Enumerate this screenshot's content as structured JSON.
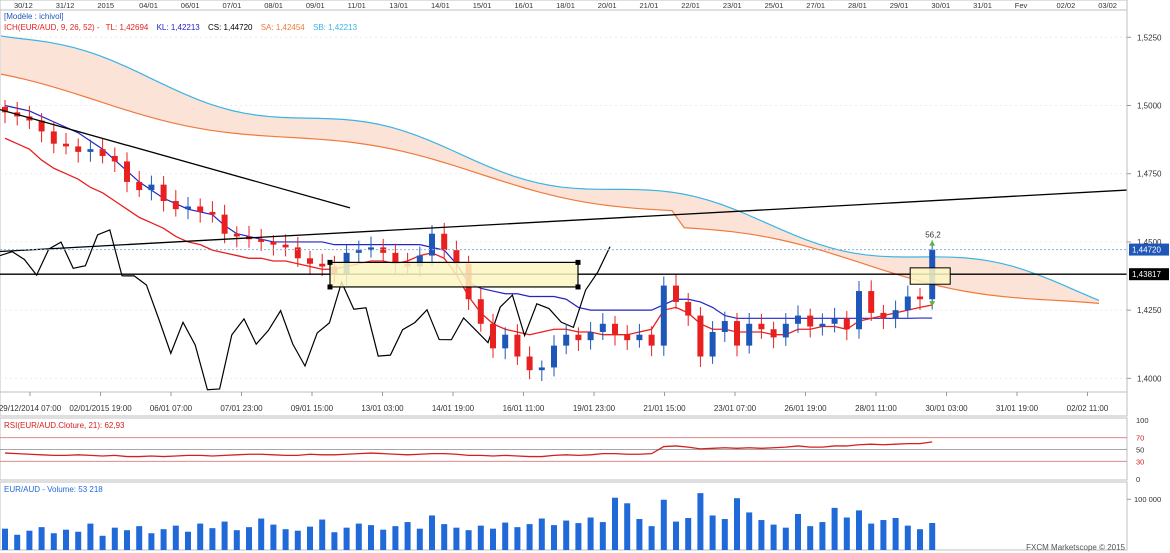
{
  "top_axis": {
    "labels": [
      "30/12",
      "31/12",
      "2015",
      "04/01",
      "06/01",
      "07/01",
      "08/01",
      "09/01",
      "11/01",
      "13/01",
      "14/01",
      "15/01",
      "16/01",
      "18/01",
      "20/01",
      "21/01",
      "22/01",
      "23/01",
      "25/01",
      "27/01",
      "28/01",
      "29/01",
      "30/01",
      "31/01",
      "Fev",
      "02/02",
      "03/02"
    ]
  },
  "header": {
    "model": "[Modèle : ichivol]",
    "ich_label": "ICH(EUR/AUD, 9, 26, 52) -",
    "tl": "TL: 1,42694",
    "kl": "KL: 1,42213",
    "cs": "CS: 1,44720",
    "sa": "SA: 1,42454",
    "sb": "SB: 1,42213"
  },
  "colors": {
    "tenkan": "#e8201f",
    "kijun": "#2323c8",
    "chikou": "#000000",
    "senkou_a": "#f07a3c",
    "senkou_b": "#3ab4e6",
    "cloud": "#fbe3d8",
    "cloud_low": "#d6eefa",
    "bull": "#1f57b8",
    "bear": "#e8201f",
    "rsi": "#d42020",
    "volume": "#1f69d8",
    "price_tag": "#1f57b8"
  },
  "chart_data": [
    {
      "type": "candlestick",
      "title": "EUR/AUD",
      "ylim": [
        1.395,
        1.535
      ],
      "y_ticks": [
        "1,5250",
        "1,5000",
        "1,4750",
        "1,4500",
        "1,4250",
        "1,4000"
      ],
      "y_tick_values": [
        1.525,
        1.5,
        1.475,
        1.45,
        1.425,
        1.4
      ],
      "x_labels": [
        "29/12/2014 07:00",
        "02/01/2015 19:00",
        "06/01 07:00",
        "07/01 23:00",
        "09/01 15:00",
        "13/01 03:00",
        "14/01 19:00",
        "16/01 11:00",
        "19/01 23:00",
        "21/01 15:00",
        "23/01 07:00",
        "26/01 19:00",
        "28/01 11:00",
        "30/01 03:00",
        "31/01 19:00",
        "02/02 11:00"
      ],
      "last_price": "1,44720",
      "last_price_value": 1.4472,
      "horizontal_level": "1,43817",
      "horizontal_level_value": 1.43817,
      "annotation": "56,2",
      "close": [
        1.4975,
        1.496,
        1.4945,
        1.4905,
        1.486,
        1.485,
        1.483,
        1.484,
        1.4815,
        1.4795,
        1.472,
        1.469,
        1.471,
        1.465,
        1.462,
        1.463,
        1.461,
        1.46,
        1.453,
        1.452,
        1.451,
        1.45,
        1.449,
        1.448,
        1.444,
        1.442,
        1.441,
        1.438,
        1.446,
        1.447,
        1.448,
        1.446,
        1.442,
        1.441,
        1.445,
        1.453,
        1.447,
        1.442,
        1.429,
        1.42,
        1.411,
        1.416,
        1.408,
        1.403,
        1.404,
        1.412,
        1.416,
        1.414,
        1.417,
        1.42,
        1.416,
        1.414,
        1.416,
        1.412,
        1.434,
        1.428,
        1.423,
        1.408,
        1.417,
        1.421,
        1.412,
        1.42,
        1.418,
        1.415,
        1.42,
        1.423,
        1.419,
        1.42,
        1.422,
        1.418,
        1.432,
        1.424,
        1.422,
        1.425,
        1.43,
        1.429,
        1.4472
      ],
      "tenkan": [
        1.488,
        1.486,
        1.484,
        1.48,
        1.477,
        1.475,
        1.473,
        1.47,
        1.468,
        1.465,
        1.462,
        1.459,
        1.457,
        1.455,
        1.452,
        1.45,
        1.449,
        1.447,
        1.446,
        1.445,
        1.444,
        1.444,
        1.443,
        1.443,
        1.442,
        1.441,
        1.44,
        1.44,
        1.441,
        1.442,
        1.443,
        1.443,
        1.442,
        1.443,
        1.445,
        1.446,
        1.444,
        1.438,
        1.43,
        1.424,
        1.42,
        1.418,
        1.417,
        1.416,
        1.417,
        1.418,
        1.418,
        1.417,
        1.417,
        1.416,
        1.416,
        1.416,
        1.417,
        1.418,
        1.425,
        1.426,
        1.424,
        1.42,
        1.418,
        1.418,
        1.417,
        1.417,
        1.417,
        1.416,
        1.416,
        1.418,
        1.418,
        1.419,
        1.419,
        1.418,
        1.421,
        1.422,
        1.423,
        1.424,
        1.425,
        1.426,
        1.4269
      ],
      "kijun": [
        1.5,
        1.499,
        1.498,
        1.496,
        1.494,
        1.492,
        1.49,
        1.487,
        1.484,
        1.48,
        1.476,
        1.472,
        1.469,
        1.466,
        1.464,
        1.462,
        1.461,
        1.46,
        1.456,
        1.453,
        1.452,
        1.451,
        1.45,
        1.45,
        1.45,
        1.45,
        1.45,
        1.449,
        1.449,
        1.449,
        1.449,
        1.449,
        1.449,
        1.449,
        1.449,
        1.448,
        1.447,
        1.442,
        1.435,
        1.433,
        1.432,
        1.431,
        1.431,
        1.43,
        1.43,
        1.43,
        1.429,
        1.426,
        1.425,
        1.425,
        1.425,
        1.425,
        1.425,
        1.425,
        1.427,
        1.429,
        1.429,
        1.428,
        1.426,
        1.423,
        1.422,
        1.422,
        1.422,
        1.422,
        1.422,
        1.422,
        1.422,
        1.422,
        1.422,
        1.422,
        1.422,
        1.422,
        1.422,
        1.422,
        1.422,
        1.4221,
        1.4221
      ]
    },
    {
      "type": "line",
      "title": "RSI(EUR/AUD.Cloture, 21): 62,93",
      "ylim": [
        0,
        100
      ],
      "y_ticks": [
        "100",
        "70",
        "50",
        "30",
        "0"
      ],
      "levels": [
        70,
        50,
        30
      ],
      "values": [
        44,
        43,
        42,
        41,
        40,
        40,
        41,
        40,
        39,
        40,
        38,
        38,
        39,
        38,
        39,
        40,
        40,
        39,
        40,
        41,
        42,
        42,
        41,
        40,
        40,
        42,
        41,
        41,
        42,
        43,
        44,
        43,
        42,
        41,
        42,
        43,
        43,
        42,
        40,
        40,
        39,
        40,
        39,
        38,
        38,
        40,
        41,
        40,
        41,
        43,
        43,
        42,
        42,
        43,
        55,
        56,
        54,
        51,
        52,
        53,
        52,
        53,
        52,
        53,
        54,
        56,
        54,
        54,
        56,
        56,
        58,
        59,
        58,
        59,
        60,
        60,
        62.93
      ]
    },
    {
      "type": "bar",
      "title": "EUR/AUD - Volume: 53 218",
      "ylim": [
        0,
        130000
      ],
      "y_ticks": [
        "100 000"
      ],
      "values": [
        42000,
        30000,
        38000,
        45000,
        33000,
        40000,
        36000,
        52000,
        28000,
        44000,
        39000,
        47000,
        33000,
        41000,
        48000,
        36000,
        52000,
        43000,
        56000,
        39000,
        45000,
        62000,
        50000,
        41000,
        38000,
        46000,
        60000,
        35000,
        44000,
        52000,
        49000,
        40000,
        47000,
        55000,
        42000,
        68000,
        51000,
        44000,
        39000,
        48000,
        42000,
        54000,
        45000,
        51000,
        62000,
        49000,
        58000,
        53000,
        64000,
        55000,
        103000,
        92000,
        61000,
        47000,
        99000,
        56000,
        63000,
        112000,
        68000,
        61000,
        102000,
        74000,
        59000,
        50000,
        44000,
        71000,
        47000,
        55000,
        83000,
        64000,
        78000,
        52000,
        59000,
        63000,
        48000,
        41000,
        53218
      ],
      "footer": "FXCM Marketscope © 2015"
    }
  ]
}
